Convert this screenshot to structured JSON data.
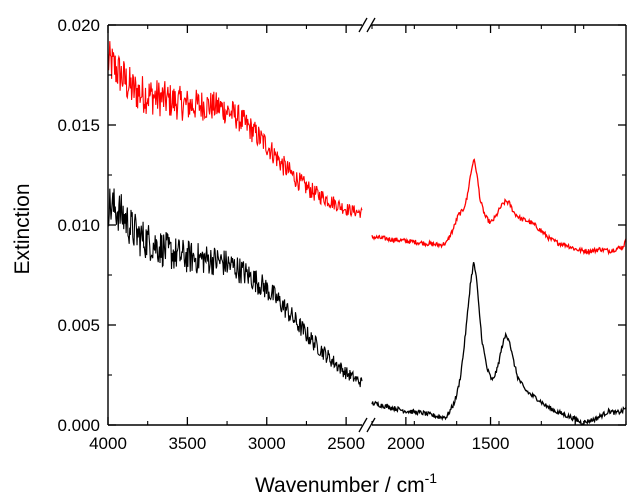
{
  "chart_data": {
    "type": "line",
    "xlabel": "Wavenumber / cm",
    "xlabel_superscript": "-1",
    "ylabel": "Extinction",
    "x_reversed": true,
    "axis_break": {
      "between": [
        2400,
        2200
      ],
      "mark": "//"
    },
    "x_segments": [
      {
        "xlim": [
          4000,
          2400
        ],
        "ticks": [
          4000,
          3500,
          3000,
          2500
        ],
        "tick_labels": [
          "4000",
          "3500",
          "3000",
          "2500"
        ]
      },
      {
        "xlim": [
          2200,
          700
        ],
        "ticks": [
          2000,
          1500,
          1000
        ],
        "tick_labels": [
          "2000",
          "1500",
          "1000"
        ]
      }
    ],
    "ylim": [
      0.0,
      0.02
    ],
    "y_ticks": [
      0.0,
      0.005,
      0.01,
      0.015,
      0.02
    ],
    "y_tick_labels": [
      "0.000",
      "0.005",
      "0.010",
      "0.015",
      "0.020"
    ],
    "grid": false,
    "series": [
      {
        "color": "#ff0000",
        "noisy_region": [
          4000,
          2400
        ],
        "points": [
          [
            4000,
            0.0182
          ],
          [
            3950,
            0.0178
          ],
          [
            3900,
            0.0173
          ],
          [
            3850,
            0.0168
          ],
          [
            3800,
            0.0166
          ],
          [
            3700,
            0.0164
          ],
          [
            3600,
            0.0162
          ],
          [
            3500,
            0.016
          ],
          [
            3400,
            0.016
          ],
          [
            3300,
            0.0159
          ],
          [
            3200,
            0.0155
          ],
          [
            3100,
            0.0148
          ],
          [
            3000,
            0.014
          ],
          [
            2900,
            0.013
          ],
          [
            2800,
            0.0122
          ],
          [
            2700,
            0.0116
          ],
          [
            2600,
            0.0112
          ],
          [
            2500,
            0.0108
          ],
          [
            2400,
            0.0106
          ],
          [
            2200,
            0.0094
          ],
          [
            2100,
            0.0093
          ],
          [
            2000,
            0.0092
          ],
          [
            1900,
            0.0091
          ],
          [
            1800,
            0.009
          ],
          [
            1760,
            0.0091
          ],
          [
            1720,
            0.0098
          ],
          [
            1690,
            0.0105
          ],
          [
            1665,
            0.0107
          ],
          [
            1640,
            0.0113
          ],
          [
            1620,
            0.0124
          ],
          [
            1600,
            0.0133
          ],
          [
            1585,
            0.0128
          ],
          [
            1560,
            0.0112
          ],
          [
            1530,
            0.0104
          ],
          [
            1500,
            0.0101
          ],
          [
            1470,
            0.0104
          ],
          [
            1440,
            0.0109
          ],
          [
            1410,
            0.0112
          ],
          [
            1390,
            0.0111
          ],
          [
            1360,
            0.0106
          ],
          [
            1320,
            0.0103
          ],
          [
            1280,
            0.0102
          ],
          [
            1240,
            0.01
          ],
          [
            1200,
            0.0097
          ],
          [
            1150,
            0.0093
          ],
          [
            1100,
            0.0091
          ],
          [
            1050,
            0.009
          ],
          [
            1000,
            0.0088
          ],
          [
            950,
            0.0087
          ],
          [
            900,
            0.0087
          ],
          [
            850,
            0.0088
          ],
          [
            800,
            0.0087
          ],
          [
            760,
            0.0088
          ],
          [
            720,
            0.0089
          ],
          [
            700,
            0.0092
          ]
        ]
      },
      {
        "color": "#000000",
        "noisy_region": [
          4000,
          2400
        ],
        "points": [
          [
            4000,
            0.011
          ],
          [
            3950,
            0.0108
          ],
          [
            3900,
            0.0104
          ],
          [
            3850,
            0.0098
          ],
          [
            3800,
            0.0094
          ],
          [
            3700,
            0.009
          ],
          [
            3600,
            0.0086
          ],
          [
            3500,
            0.0084
          ],
          [
            3400,
            0.0083
          ],
          [
            3300,
            0.0082
          ],
          [
            3200,
            0.0079
          ],
          [
            3100,
            0.0074
          ],
          [
            3000,
            0.0068
          ],
          [
            2900,
            0.006
          ],
          [
            2800,
            0.005
          ],
          [
            2700,
            0.0041
          ],
          [
            2600,
            0.0033
          ],
          [
            2500,
            0.0026
          ],
          [
            2400,
            0.0021
          ],
          [
            2200,
            0.0011
          ],
          [
            2100,
            0.0009
          ],
          [
            2000,
            0.0007
          ],
          [
            1900,
            0.0006
          ],
          [
            1800,
            0.0004
          ],
          [
            1760,
            0.0004
          ],
          [
            1720,
            0.001
          ],
          [
            1700,
            0.0015
          ],
          [
            1680,
            0.0023
          ],
          [
            1660,
            0.0036
          ],
          [
            1640,
            0.0052
          ],
          [
            1620,
            0.007
          ],
          [
            1600,
            0.0081
          ],
          [
            1585,
            0.0075
          ],
          [
            1570,
            0.006
          ],
          [
            1550,
            0.0042
          ],
          [
            1520,
            0.0028
          ],
          [
            1490,
            0.0022
          ],
          [
            1460,
            0.0028
          ],
          [
            1430,
            0.004
          ],
          [
            1410,
            0.0045
          ],
          [
            1390,
            0.0043
          ],
          [
            1370,
            0.0034
          ],
          [
            1340,
            0.0024
          ],
          [
            1300,
            0.0018
          ],
          [
            1260,
            0.0015
          ],
          [
            1220,
            0.0013
          ],
          [
            1180,
            0.001
          ],
          [
            1120,
            0.0007
          ],
          [
            1060,
            0.0005
          ],
          [
            1000,
            0.0003
          ],
          [
            960,
            0.0001
          ],
          [
            920,
            0.0002
          ],
          [
            880,
            0.0003
          ],
          [
            840,
            0.0005
          ],
          [
            800,
            0.0007
          ],
          [
            760,
            0.0006
          ],
          [
            720,
            0.0007
          ],
          [
            700,
            0.0009
          ]
        ]
      }
    ]
  }
}
